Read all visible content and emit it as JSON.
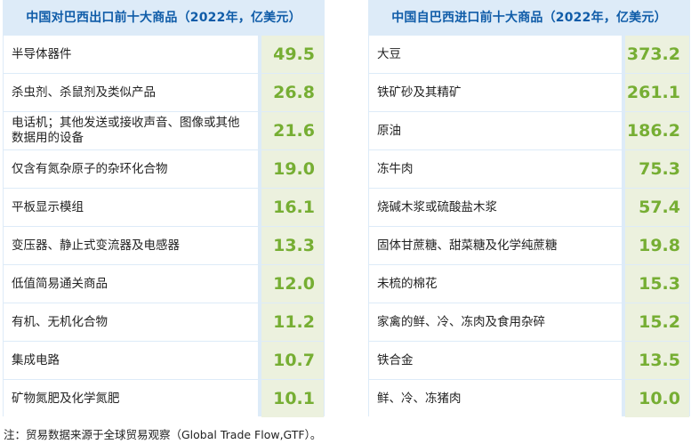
{
  "export_table": {
    "title": "中国对巴西出口前十大商品（2022年，亿美元）",
    "rows": [
      {
        "name": "半导体器件",
        "value": "49.5"
      },
      {
        "name": "杀虫剂、杀鼠剂及类似产品",
        "value": "26.8"
      },
      {
        "name": "电话机；其他发送或接收声音、图像或其他数据用的设备",
        "value": "21.6"
      },
      {
        "name": "仅含有氮杂原子的杂环化合物",
        "value": "19.0"
      },
      {
        "name": "平板显示模组",
        "value": "16.1"
      },
      {
        "name": "变压器、静止式变流器及电感器",
        "value": "13.3"
      },
      {
        "name": "低值简易通关商品",
        "value": "12.0"
      },
      {
        "name": "有机、无机化合物",
        "value": "11.2"
      },
      {
        "name": "集成电路",
        "value": "10.7"
      },
      {
        "name": "矿物氮肥及化学氮肥",
        "value": "10.1"
      }
    ]
  },
  "import_table": {
    "title": "中国自巴西进口前十大商品（2022年，亿美元）",
    "rows": [
      {
        "name": "大豆",
        "value": "373.2"
      },
      {
        "name": "铁矿砂及其精矿",
        "value": "261.1"
      },
      {
        "name": "原油",
        "value": "186.2"
      },
      {
        "name": "冻牛肉",
        "value": "75.3"
      },
      {
        "name": "烧碱木浆或硫酸盐木浆",
        "value": "57.4"
      },
      {
        "name": "固体甘蔗糖、甜菜糖及化学纯蔗糖",
        "value": "19.8"
      },
      {
        "name": "未梳的棉花",
        "value": "15.3"
      },
      {
        "name": "家禽的鲜、冷、冻肉及食用杂碎",
        "value": "15.2"
      },
      {
        "name": "铁合金",
        "value": "13.5"
      },
      {
        "name": "鲜、冷、冻猪肉",
        "value": "10.0"
      }
    ]
  },
  "footnote": "注：贸易数据来源于全球贸易观察（Global Trade Flow,GTF）。",
  "colors": {
    "title": "#0f5ca8",
    "panel_bg": "#ddebf8",
    "value_bg": "#ecf1de",
    "value_text": "#76ae33"
  }
}
